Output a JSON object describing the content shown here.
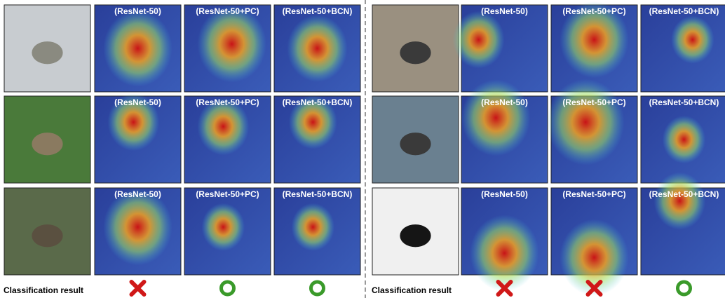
{
  "panels": [
    {
      "rows": [
        {
          "labels": [
            "(ResNet-50)",
            "(ResNet-50+PC)",
            "(ResNet-50+BCN)"
          ]
        },
        {
          "labels": [
            "(ResNet-50)",
            "(ResNet-50+PC)",
            "(ResNet-50+BCN)"
          ]
        },
        {
          "labels": [
            "(ResNet-50)",
            "(ResNet-50+PC)",
            "(ResNet-50+BCN)"
          ]
        }
      ],
      "result_label": "Classification result"
    },
    {
      "rows": [
        {
          "labels": [
            "(ResNet-50)",
            "(ResNet-50+PC)",
            "(ResNet-50+BCN)"
          ]
        },
        {
          "labels": [
            "(ResNet-50)",
            "(ResNet-50+PC)",
            "(ResNet-50+BCN)"
          ]
        },
        {
          "labels": [
            "(ResNet-50)",
            "(ResNet-50+PC)",
            "(ResNet-50+BCN)"
          ]
        }
      ],
      "result_label": "Classification result"
    }
  ]
}
